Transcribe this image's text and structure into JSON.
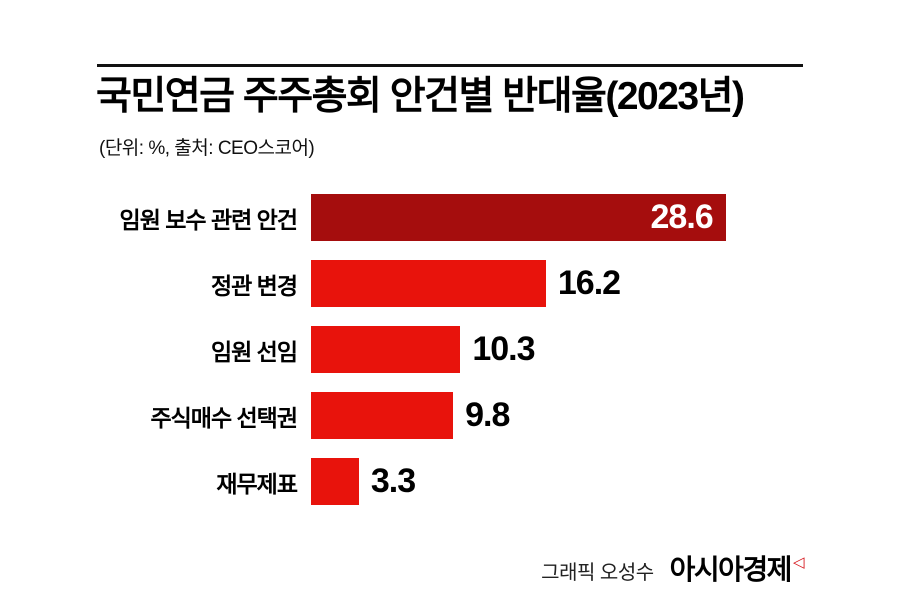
{
  "colors": {
    "first_bar": "#a50d0d",
    "bar": "#e8130c",
    "rule": "#111111",
    "brand_mark": "#d51017"
  },
  "chart_data": {
    "type": "bar",
    "orientation": "horizontal",
    "title": "국민연금 주주총회 안건별 반대율(2023년)",
    "subtitle": "(단위: %, 출처: CEO스코어)",
    "categories": [
      "임원 보수 관련 안건",
      "정관 변경",
      "임원 선임",
      "주식매수 선택권",
      "재무제표"
    ],
    "values": [
      28.6,
      16.2,
      10.3,
      9.8,
      3.3
    ],
    "unit": "%",
    "xlim": [
      0,
      30
    ],
    "legend": "none",
    "grid": "off",
    "value_label_position_first": "inside-right",
    "value_label_position_rest": "outside-right"
  },
  "footer": {
    "credit": "그래픽 오성수",
    "brand": "아시아경제",
    "brand_mark_icon": "triangle-left"
  }
}
